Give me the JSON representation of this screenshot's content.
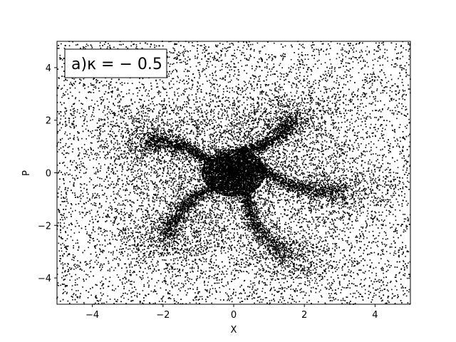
{
  "chart_data": {
    "type": "scatter",
    "title": "",
    "annotation": "a)κ = − 0.5",
    "xlabel": "X",
    "ylabel": "P",
    "xlim": [
      -5,
      5
    ],
    "ylim": [
      -5,
      5
    ],
    "xticks": [
      -4,
      -2,
      0,
      2,
      4
    ],
    "yticks": [
      -4,
      -2,
      0,
      2,
      4
    ],
    "grid": false,
    "legend": "none",
    "marker_color": "#000000",
    "structure": {
      "core_radius": 0.9,
      "spiral_arms": 5,
      "arm_angles_deg": [
        150,
        225,
        300,
        15,
        80
      ],
      "arm_endpoints": [
        [
          -2.5,
          1.2
        ],
        [
          -1.9,
          -2.5
        ],
        [
          1.6,
          -3.2
        ],
        [
          3.1,
          -0.7
        ],
        [
          1.7,
          2.1
        ]
      ]
    }
  }
}
